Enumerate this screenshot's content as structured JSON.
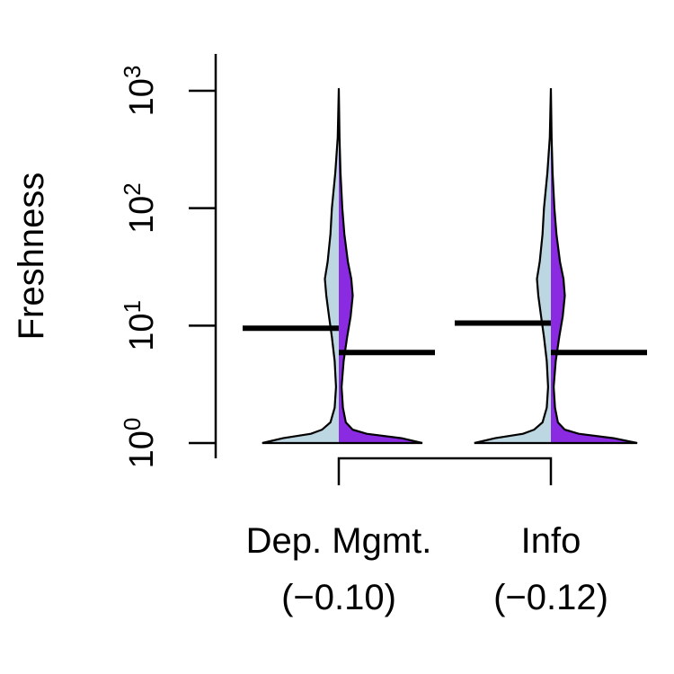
{
  "chart_data": {
    "type": "violin",
    "title": "",
    "xlabel": "",
    "ylabel": "Freshness",
    "yscale": "log10",
    "ylim": [
      1,
      1000
    ],
    "y_ticks": [
      {
        "value": 1,
        "base": "10",
        "exp": "0"
      },
      {
        "value": 10,
        "base": "10",
        "exp": "1"
      },
      {
        "value": 100,
        "base": "10",
        "exp": "2"
      },
      {
        "value": 1000,
        "base": "10",
        "exp": "3"
      }
    ],
    "grid": false,
    "legend": "none",
    "colors": {
      "left_half": "#bcd6e2",
      "right_half": "#8a2be2"
    },
    "groups": [
      {
        "label": "Dep. Mgmt.",
        "sublabel": "(−0.10)",
        "left_median": 9.5,
        "right_median": 5.9,
        "y_max": 1050,
        "left_density": [
          [
            1,
            0.55
          ],
          [
            1.1,
            0.4
          ],
          [
            1.2,
            0.2
          ],
          [
            1.3,
            0.12
          ],
          [
            1.5,
            0.06
          ],
          [
            2,
            0.03
          ],
          [
            3,
            0.02
          ],
          [
            5,
            0.03
          ],
          [
            8,
            0.05
          ],
          [
            12,
            0.07
          ],
          [
            18,
            0.09
          ],
          [
            25,
            0.1
          ],
          [
            35,
            0.08
          ],
          [
            60,
            0.06
          ],
          [
            100,
            0.05
          ],
          [
            200,
            0.025
          ],
          [
            400,
            0.008
          ],
          [
            1050,
            0.0
          ]
        ],
        "right_density": [
          [
            1,
            0.6
          ],
          [
            1.1,
            0.45
          ],
          [
            1.2,
            0.2
          ],
          [
            1.3,
            0.1
          ],
          [
            1.5,
            0.05
          ],
          [
            2,
            0.03
          ],
          [
            3,
            0.02
          ],
          [
            5,
            0.035
          ],
          [
            8,
            0.06
          ],
          [
            12,
            0.085
          ],
          [
            18,
            0.1
          ],
          [
            25,
            0.09
          ],
          [
            35,
            0.065
          ],
          [
            60,
            0.04
          ],
          [
            100,
            0.025
          ],
          [
            200,
            0.012
          ],
          [
            400,
            0.005
          ],
          [
            1050,
            0.0
          ]
        ]
      },
      {
        "label": "Info",
        "sublabel": "(−0.12)",
        "left_median": 10.5,
        "right_median": 5.9,
        "y_max": 1050,
        "left_density": [
          [
            1,
            0.55
          ],
          [
            1.1,
            0.4
          ],
          [
            1.2,
            0.2
          ],
          [
            1.3,
            0.12
          ],
          [
            1.5,
            0.06
          ],
          [
            2,
            0.03
          ],
          [
            3,
            0.02
          ],
          [
            5,
            0.03
          ],
          [
            8,
            0.05
          ],
          [
            12,
            0.07
          ],
          [
            18,
            0.09
          ],
          [
            25,
            0.1
          ],
          [
            35,
            0.08
          ],
          [
            60,
            0.06
          ],
          [
            100,
            0.05
          ],
          [
            200,
            0.025
          ],
          [
            400,
            0.008
          ],
          [
            1050,
            0.0
          ]
        ],
        "right_density": [
          [
            1,
            0.62
          ],
          [
            1.1,
            0.45
          ],
          [
            1.2,
            0.2
          ],
          [
            1.3,
            0.1
          ],
          [
            1.5,
            0.05
          ],
          [
            2,
            0.03
          ],
          [
            3,
            0.02
          ],
          [
            5,
            0.035
          ],
          [
            8,
            0.06
          ],
          [
            12,
            0.085
          ],
          [
            18,
            0.1
          ],
          [
            25,
            0.09
          ],
          [
            35,
            0.065
          ],
          [
            60,
            0.04
          ],
          [
            100,
            0.025
          ],
          [
            200,
            0.012
          ],
          [
            400,
            0.005
          ],
          [
            1050,
            0.0
          ]
        ]
      }
    ]
  }
}
